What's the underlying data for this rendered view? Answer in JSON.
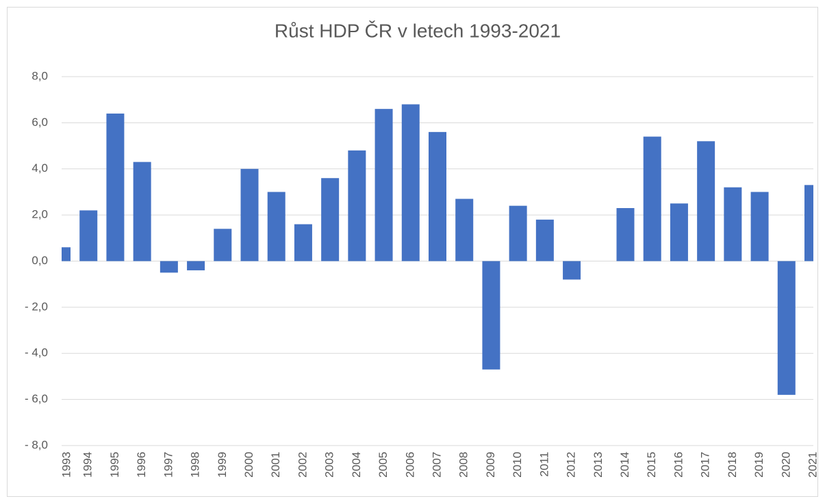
{
  "chart_data": {
    "type": "bar",
    "title": "Růst HDP ČR v letech 1993-2021",
    "categories": [
      "1993",
      "1994",
      "1995",
      "1996",
      "1997",
      "1998",
      "1999",
      "2000",
      "2001",
      "2002",
      "2003",
      "2004",
      "2005",
      "2006",
      "2007",
      "2008",
      "2009",
      "2010",
      "2011",
      "2012",
      "2013",
      "2014",
      "2015",
      "2016",
      "2017",
      "2018",
      "2019",
      "2020",
      "2021"
    ],
    "values": [
      0.6,
      2.2,
      6.4,
      4.3,
      -0.5,
      -0.4,
      1.4,
      4.0,
      3.0,
      1.6,
      3.6,
      4.8,
      6.6,
      6.8,
      5.6,
      2.7,
      -4.7,
      2.4,
      1.8,
      -0.8,
      0,
      2.3,
      5.4,
      2.5,
      5.2,
      3.2,
      3.0,
      -5.8,
      3.3
    ],
    "color": "#4472c4",
    "ylim": [
      -8,
      8
    ],
    "yticks": [
      {
        "value": -8,
        "label": "- 8,0"
      },
      {
        "value": -6,
        "label": "- 6,0"
      },
      {
        "value": -4,
        "label": "- 4,0"
      },
      {
        "value": -2,
        "label": "- 2,0"
      },
      {
        "value": 0,
        "label": "0,0"
      },
      {
        "value": 2,
        "label": "2,0"
      },
      {
        "value": 4,
        "label": "4,0"
      },
      {
        "value": 6,
        "label": "6,0"
      },
      {
        "value": 8,
        "label": "8,0"
      }
    ],
    "grid": true
  }
}
